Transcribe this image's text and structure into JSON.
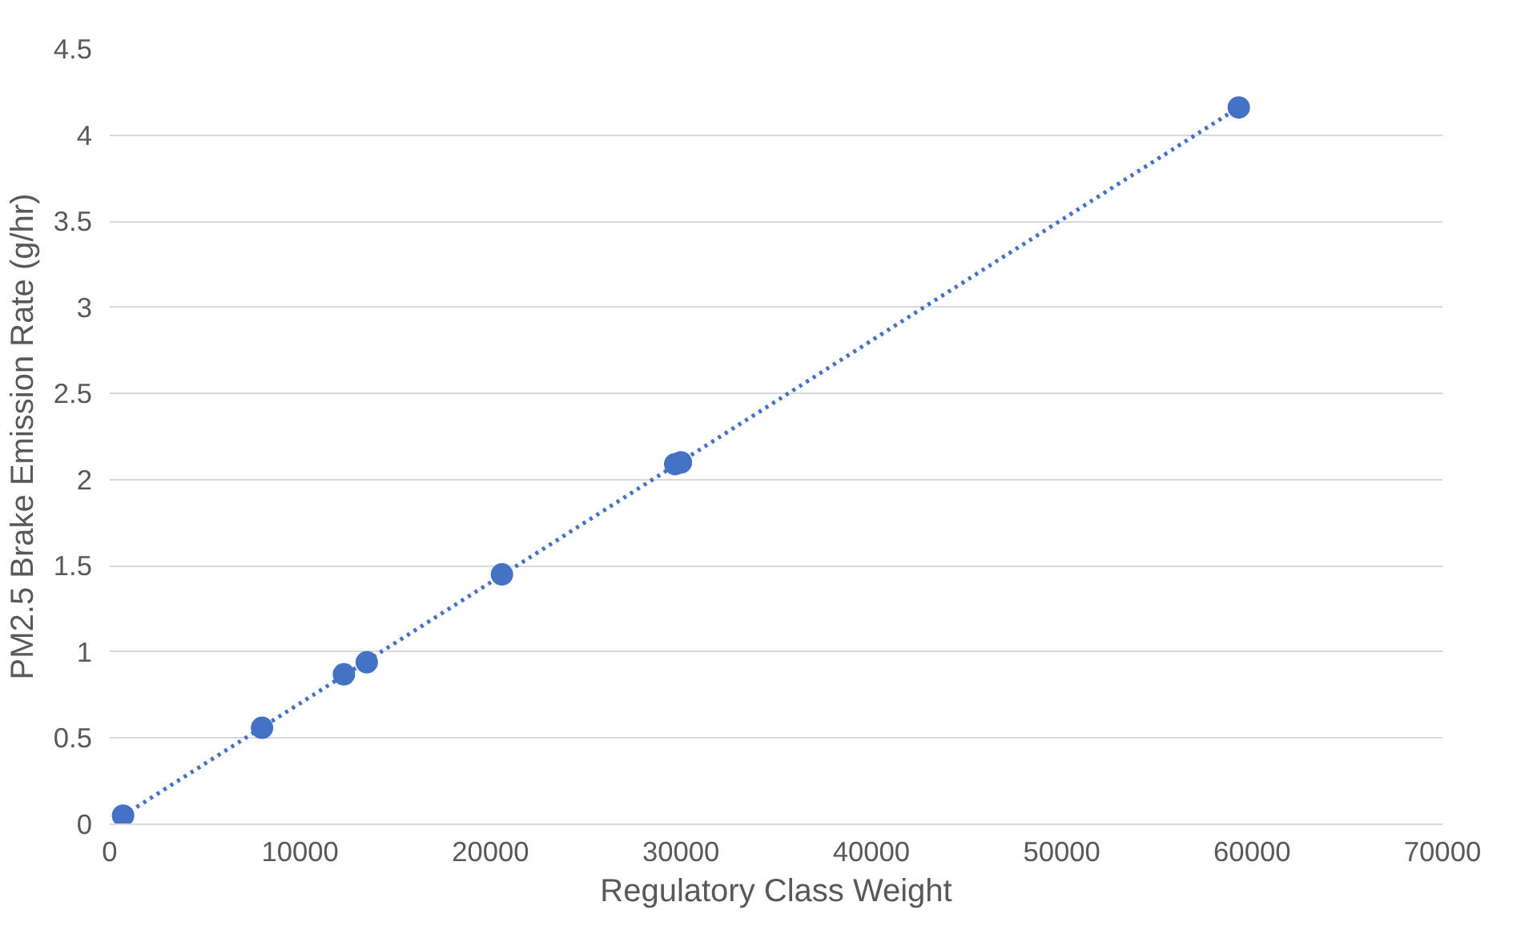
{
  "chart_data": {
    "type": "scatter",
    "xlabel": "Regulatory Class Weight",
    "ylabel": "PM2.5 Brake Emission Rate (g/hr)",
    "xlim": [
      0,
      70000
    ],
    "xticks": [
      0,
      10000,
      20000,
      30000,
      40000,
      50000,
      60000,
      70000
    ],
    "ylim": [
      0,
      4.5
    ],
    "yticks": [
      0,
      0.5,
      1,
      1.5,
      2,
      2.5,
      3,
      3.5,
      4,
      4.5
    ],
    "grid": "y",
    "marker": "circle",
    "series": [
      {
        "color": "#4472c4",
        "x": [
          700,
          8000,
          12300,
          13500,
          20600,
          29700,
          30000,
          59300
        ],
        "values": [
          0.05,
          0.56,
          0.87,
          0.94,
          1.45,
          2.09,
          2.1,
          4.16
        ]
      },
      {
        "type": "line",
        "line_style": "dotted",
        "marker": "none",
        "color": "#4472c4",
        "x": [
          700,
          59300
        ],
        "values": [
          0.05,
          4.16
        ]
      }
    ]
  }
}
